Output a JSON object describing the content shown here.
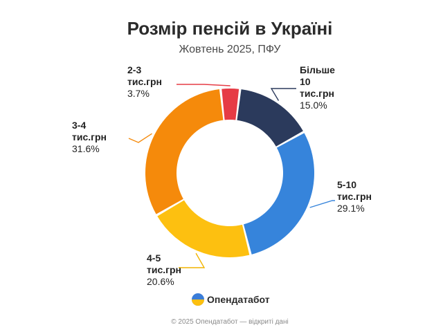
{
  "chart_data": {
    "type": "pie",
    "title": "Розмір пенсій в Україні",
    "subtitle": "Жовтень 2025, ПФУ",
    "categories": [
      "Більше 10 тис.грн",
      "5-10 тис.грн",
      "4-5 тис.грн",
      "3-4 тис.грн",
      "2-3 тис.грн"
    ],
    "values": [
      15.0,
      29.1,
      20.6,
      31.6,
      3.7
    ],
    "value_labels": [
      "15.0%",
      "29.1%",
      "20.6%",
      "31.6%",
      "3.7%"
    ],
    "label_lines": [
      [
        "Більше",
        "10",
        "тис.грн"
      ],
      [
        "5-10",
        "тис.грн"
      ],
      [
        "4-5",
        "тис.грн"
      ],
      [
        "3-4",
        "тис.грн"
      ],
      [
        "2-3",
        "тис.грн"
      ]
    ],
    "colors": [
      "#2b3a5c",
      "#3684db",
      "#fdc010",
      "#f58a0b",
      "#e63b45"
    ],
    "leader_colors": [
      "#2b3a5c",
      "#3684db",
      "#f2b400",
      "#f58a0b",
      "#e63b45"
    ],
    "donut": true
  },
  "brand": {
    "name": "Опендатабот",
    "logo_icon": "opendatabot-logo-icon"
  },
  "footer": {
    "text": "© 2025 Опендатабот — відкриті дані"
  }
}
